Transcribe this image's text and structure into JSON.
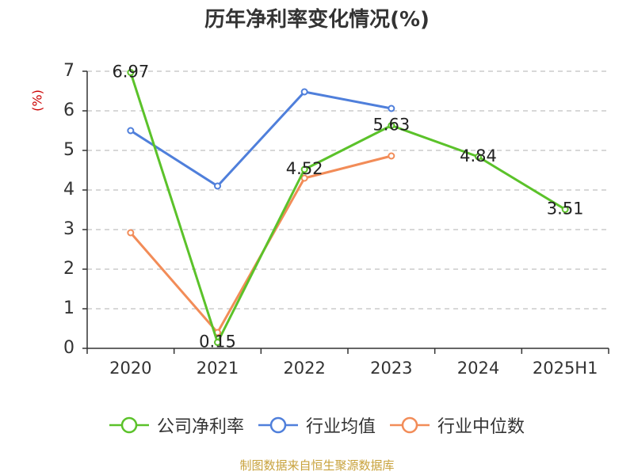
{
  "title": "历年净利率变化情况(%)",
  "footer": "制图数据来自恒生聚源数据库",
  "colors": {
    "axis": "#333333",
    "grid": "#cccccc",
    "ylabel": "#cc0000",
    "footer": "#c8a23c"
  },
  "chart_data": {
    "type": "line",
    "title": "历年净利率变化情况(%)",
    "xlabel": "",
    "ylabel": "(%)",
    "categories": [
      "2020",
      "2021",
      "2022",
      "2023",
      "2024",
      "2025H1"
    ],
    "ylim": [
      0,
      7
    ],
    "yticks": [
      0,
      1,
      2,
      3,
      4,
      5,
      6,
      7
    ],
    "grid": true,
    "legend_position": "bottom",
    "series": [
      {
        "name": "公司净利率",
        "color": "#5bc22a",
        "values": [
          6.97,
          0.15,
          4.52,
          5.63,
          4.84,
          3.51
        ],
        "labels": [
          "6.97",
          "0.15",
          "4.52",
          "5.63",
          "4.84",
          "3.51"
        ]
      },
      {
        "name": "行业均值",
        "color": "#4f7fdb",
        "values": [
          5.5,
          4.1,
          6.48,
          6.06,
          null,
          null
        ]
      },
      {
        "name": "行业中位数",
        "color": "#f28c58",
        "values": [
          2.92,
          0.4,
          4.3,
          4.86,
          null,
          null
        ]
      }
    ]
  }
}
